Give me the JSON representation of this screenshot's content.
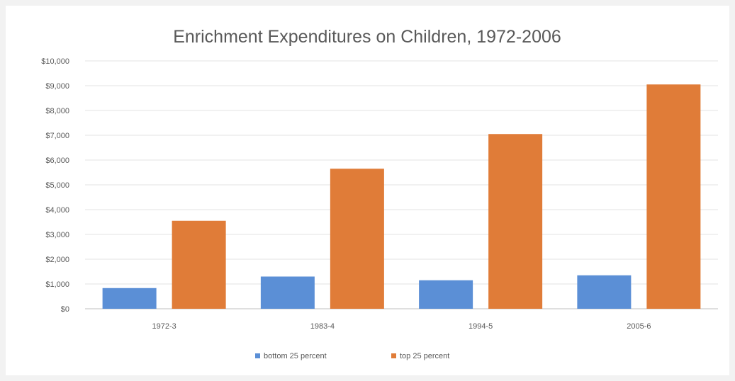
{
  "chart_data": {
    "type": "bar",
    "title": "Enrichment Expenditures on Children, 1972-2006",
    "categories": [
      "1972-3",
      "1983-4",
      "1994-5",
      "2005-6"
    ],
    "series": [
      {
        "name": "bottom 25 percent",
        "color": "#5b8fd6",
        "values": [
          835,
          1300,
          1150,
          1350
        ]
      },
      {
        "name": "top 25 percent",
        "color": "#e07c38",
        "values": [
          3550,
          5650,
          7050,
          9050
        ]
      }
    ],
    "ylim": [
      0,
      10000
    ],
    "yticks": [
      0,
      1000,
      2000,
      3000,
      4000,
      5000,
      6000,
      7000,
      8000,
      9000,
      10000
    ],
    "ytick_labels": [
      "$0",
      "$1,000",
      "$2,000",
      "$3,000",
      "$4,000",
      "$5,000",
      "$6,000",
      "$7,000",
      "$8,000",
      "$9,000",
      "$10,000"
    ],
    "grid": true,
    "legend": "bottom"
  }
}
